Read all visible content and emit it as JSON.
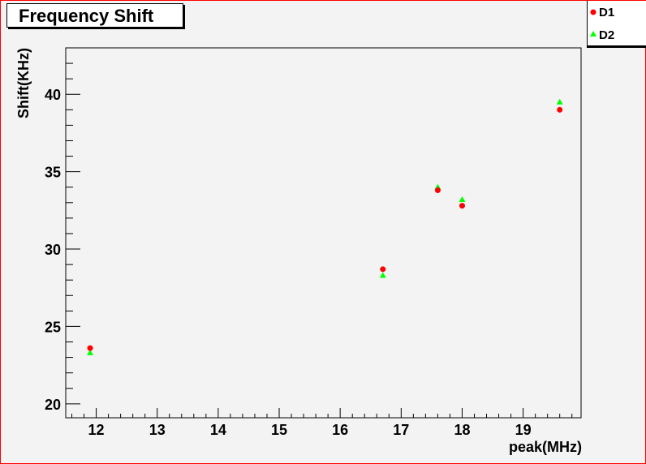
{
  "title": "Frequency Shift",
  "legend": [
    {
      "label": "D1",
      "marker": "circle",
      "color": "#ff0000"
    },
    {
      "label": "D2",
      "marker": "triangle",
      "color": "#00ff00"
    }
  ],
  "colors": {
    "frame": "#ff0000",
    "background": "#f3f3f3"
  },
  "chart_data": {
    "type": "scatter",
    "title": "Frequency Shift",
    "xlabel": "peak(MHz)",
    "ylabel": "Shift(KHz)",
    "xlim": [
      11.5,
      19.95
    ],
    "ylim": [
      19.1,
      43.0
    ],
    "xticks": [
      12,
      13,
      14,
      15,
      16,
      17,
      18,
      19
    ],
    "yticks": [
      20,
      25,
      30,
      35,
      40
    ],
    "legend_position": "top-right",
    "grid": false,
    "series": [
      {
        "name": "D1",
        "marker": "circle",
        "color": "#ff0000",
        "x": [
          11.9,
          16.7,
          17.6,
          18.0,
          19.6
        ],
        "y": [
          23.6,
          28.7,
          33.8,
          32.8,
          39.0
        ]
      },
      {
        "name": "D2",
        "marker": "triangle",
        "color": "#00ff00",
        "x": [
          11.9,
          16.7,
          17.6,
          18.0,
          19.6
        ],
        "y": [
          23.3,
          28.3,
          34.0,
          33.2,
          39.5
        ]
      }
    ]
  }
}
